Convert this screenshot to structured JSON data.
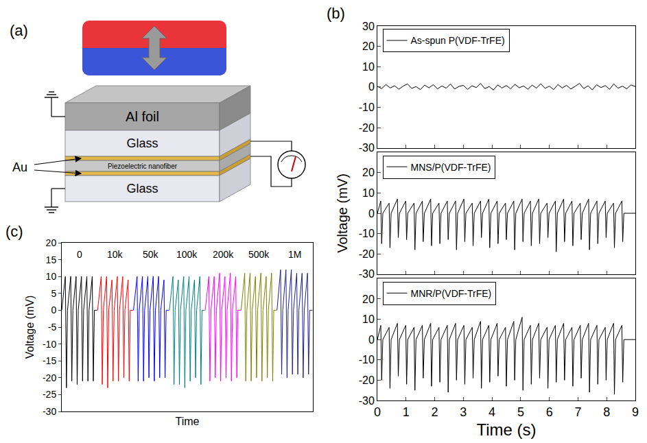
{
  "diagram": {
    "panel": "(a)",
    "layers": [
      "Al foil",
      "Glass",
      "Piezoelectric nanofiber",
      "Glass"
    ],
    "electrode": "Au"
  },
  "chart_data": [
    {
      "panel": "(b)",
      "type": "line",
      "xlim": [
        0,
        9
      ],
      "xticks": [
        0,
        1,
        2,
        3,
        4,
        5,
        6,
        7,
        8,
        9
      ],
      "ylim": [
        -30,
        30
      ],
      "yticks": [
        -30,
        -20,
        -10,
        0,
        10,
        20,
        30
      ],
      "legend": "upper left",
      "tick_labels": "y",
      "series": [
        {
          "name": "As-spun P(VDF-TrFE)",
          "color": "#000000",
          "x": [
            0,
            0.15,
            0.3,
            0.45,
            0.6,
            0.75,
            0.9,
            1.05,
            1.2,
            1.35,
            1.5,
            1.65,
            1.8,
            1.95,
            2.1,
            2.25,
            2.4,
            2.55,
            2.7,
            2.85,
            3,
            3.15,
            3.3,
            3.45,
            3.6,
            3.75,
            3.9,
            4.05,
            4.2,
            4.35,
            4.5,
            4.65,
            4.8,
            4.95,
            5.1,
            5.25,
            5.4,
            5.55,
            5.7,
            5.85,
            6,
            6.15,
            6.3,
            6.45,
            6.6,
            6.75,
            6.9,
            7.05,
            7.2,
            7.35,
            7.5,
            7.65,
            7.8,
            7.95,
            8.1,
            8.25,
            8.4,
            8.55,
            8.7,
            8.85,
            9
          ],
          "values": [
            0.3,
            -0.8,
            1.2,
            -0.5,
            0.6,
            -1.1,
            0.4,
            1.5,
            -0.7,
            0.2,
            -1.3,
            0.9,
            -0.4,
            1.1,
            -0.9,
            0.5,
            -0.6,
            1.4,
            -1.0,
            0.3,
            0.8,
            -1.2,
            0.6,
            -0.3,
            1.7,
            -0.8,
            0.2,
            -1.5,
            1.0,
            -0.5,
            0.7,
            -0.9,
            1.3,
            -0.4,
            0.5,
            -1.1,
            0.9,
            -0.6,
            1.6,
            -0.7,
            0.4,
            -1.3,
            1.2,
            -0.5,
            0.8,
            -1.0,
            0.3,
            1.8,
            -0.8,
            0.6,
            -1.4,
            1.1,
            -0.3,
            0.7,
            -1.2,
            1.5,
            -0.6,
            0.4,
            -0.9,
            1.0,
            0.2
          ]
        }
      ]
    },
    {
      "type": "line",
      "y_label": "Voltage (mV)",
      "xlim": [
        0,
        9
      ],
      "xticks": [
        0,
        1,
        2,
        3,
        4,
        5,
        6,
        7,
        8,
        9
      ],
      "ylim": [
        -30,
        30
      ],
      "yticks": [
        -30,
        -20,
        -10,
        0,
        10,
        20
      ],
      "legend": "upper left",
      "tick_labels": "y",
      "series": [
        {
          "name": "MNS/P(VDF-TrFE)",
          "color": "#000000",
          "x": [
            0,
            0.12,
            0.15,
            0.19,
            0.41,
            0.44,
            0.48,
            0.7,
            0.73,
            0.77,
            0.99,
            1.02,
            1.06,
            1.28,
            1.31,
            1.35,
            1.57,
            1.6,
            1.64,
            1.86,
            1.89,
            1.93,
            2.15,
            2.18,
            2.22,
            2.44,
            2.47,
            2.51,
            2.73,
            2.76,
            2.8,
            3.02,
            3.05,
            3.09,
            3.31,
            3.34,
            3.38,
            3.6,
            3.63,
            3.67,
            3.89,
            3.92,
            3.96,
            4.18,
            4.21,
            4.25,
            4.47,
            4.5,
            4.54,
            4.76,
            4.79,
            4.83,
            5.05,
            5.08,
            5.12,
            5.34,
            5.37,
            5.41,
            5.63,
            5.66,
            5.7,
            5.92,
            5.95,
            5.99,
            6.21,
            6.24,
            6.28,
            6.5,
            6.53,
            6.57,
            6.79,
            6.82,
            6.86,
            7.08,
            7.11,
            7.15,
            7.37,
            7.4,
            7.44,
            7.66,
            7.69,
            7.73,
            7.95,
            7.98,
            8.02,
            8.24,
            8.27,
            8.31,
            8.53,
            8.56,
            8.6,
            9
          ],
          "values": [
            0,
            6,
            -15,
            0,
            5,
            -17,
            0,
            7,
            -12,
            0,
            6,
            -13,
            0,
            5,
            -18,
            0,
            6,
            -14,
            0,
            7,
            -16,
            0,
            5,
            -15,
            0,
            6,
            -13,
            0,
            6,
            -18,
            0,
            7,
            -14,
            0,
            5,
            -16,
            0,
            6,
            -12,
            0,
            7,
            -17,
            0,
            6,
            -15,
            0,
            5,
            -13,
            0,
            6,
            -18,
            0,
            7,
            -14,
            0,
            6,
            -16,
            0,
            7,
            -15,
            0,
            5,
            -12,
            0,
            6,
            -19,
            0,
            7,
            -14,
            0,
            6,
            -16,
            0,
            5,
            -13,
            0,
            7,
            -18,
            0,
            6,
            -15,
            0,
            6,
            -12,
            0,
            5,
            -17,
            0,
            6,
            -14,
            0,
            0
          ]
        }
      ]
    },
    {
      "type": "line",
      "x_label": "Time (s)",
      "xlim": [
        0,
        9
      ],
      "xticks": [
        0,
        1,
        2,
        3,
        4,
        5,
        6,
        7,
        8,
        9
      ],
      "ylim": [
        -30,
        30
      ],
      "yticks": [
        -30,
        -20,
        -10,
        0,
        10,
        20
      ],
      "legend": "upper left",
      "series": [
        {
          "name": "MNR/P(VDF-TrFE)",
          "color": "#000000",
          "x": [
            0,
            0.12,
            0.15,
            0.19,
            0.41,
            0.44,
            0.48,
            0.7,
            0.73,
            0.77,
            0.99,
            1.02,
            1.06,
            1.28,
            1.31,
            1.35,
            1.57,
            1.6,
            1.64,
            1.86,
            1.89,
            1.93,
            2.15,
            2.18,
            2.22,
            2.44,
            2.47,
            2.51,
            2.73,
            2.76,
            2.8,
            3.02,
            3.05,
            3.09,
            3.31,
            3.34,
            3.38,
            3.6,
            3.63,
            3.67,
            3.89,
            3.92,
            3.96,
            4.18,
            4.21,
            4.25,
            4.47,
            4.5,
            4.54,
            4.76,
            4.79,
            4.83,
            5.05,
            5.08,
            5.12,
            5.34,
            5.37,
            5.41,
            5.63,
            5.66,
            5.7,
            5.92,
            5.95,
            5.99,
            6.21,
            6.24,
            6.28,
            6.5,
            6.53,
            6.57,
            6.79,
            6.82,
            6.86,
            7.08,
            7.11,
            7.15,
            7.37,
            7.4,
            7.44,
            7.66,
            7.69,
            7.73,
            7.95,
            7.98,
            8.02,
            8.24,
            8.27,
            8.31,
            8.53,
            8.56,
            8.6,
            9
          ],
          "values": [
            0,
            7,
            -20,
            0,
            6,
            -24,
            0,
            8,
            -18,
            0,
            7,
            -22,
            0,
            6,
            -25,
            0,
            7,
            -19,
            0,
            8,
            -23,
            0,
            6,
            -21,
            0,
            7,
            -26,
            0,
            8,
            -20,
            0,
            7,
            -22,
            0,
            6,
            -19,
            0,
            9,
            -24,
            0,
            7,
            -21,
            0,
            8,
            -18,
            0,
            6,
            -23,
            0,
            9,
            -20,
            0,
            11,
            -25,
            0,
            7,
            -22,
            0,
            8,
            -19,
            0,
            6,
            -24,
            0,
            7,
            -21,
            0,
            8,
            -20,
            0,
            6,
            -23,
            0,
            7,
            -19,
            0,
            8,
            -26,
            0,
            7,
            -22,
            0,
            6,
            -20,
            0,
            8,
            -27,
            0,
            7,
            -21,
            0,
            0
          ]
        }
      ]
    },
    {
      "panel": "(c)",
      "type": "line",
      "x_label": "Time",
      "y_label": "Voltage (mV)",
      "xlim": [
        0,
        70
      ],
      "xticks": [],
      "ylim": [
        -30,
        20
      ],
      "yticks": [
        -30,
        -25,
        -20,
        -15,
        -10,
        -5,
        0,
        5,
        10,
        15,
        20
      ],
      "tick_labels": "y",
      "series": [
        {
          "name": "0",
          "color": "#000000",
          "x": [
            0,
            1,
            1.3,
            1.6,
            2.5,
            2.8,
            3.1,
            4,
            4.3,
            4.6,
            5.5,
            5.8,
            6.1,
            7,
            7.3,
            7.6,
            8.5,
            8.8,
            9.1,
            9.9
          ],
          "values": [
            0,
            10,
            -23,
            0,
            10,
            -21,
            0,
            10,
            -22,
            0,
            10,
            -21,
            0,
            10,
            -21,
            0,
            10,
            -21,
            0,
            0
          ]
        },
        {
          "name": "10k",
          "color": "#ff0000",
          "x": [
            10,
            11,
            11.3,
            11.6,
            12.5,
            12.8,
            13.1,
            14,
            14.3,
            14.6,
            15.5,
            15.8,
            16.1,
            17,
            17.3,
            17.6,
            18.5,
            18.8,
            19.1,
            19.9
          ],
          "values": [
            0,
            10,
            -22,
            0,
            10,
            -23,
            0,
            9,
            -21,
            0,
            10,
            -21,
            0,
            10,
            -20,
            0,
            9,
            -21,
            0,
            0
          ]
        },
        {
          "name": "50k",
          "color": "#0000ff",
          "x": [
            20,
            21,
            21.3,
            21.6,
            22.5,
            22.8,
            23.1,
            24,
            24.3,
            24.6,
            25.5,
            25.8,
            26.1,
            27,
            27.3,
            27.6,
            28.5,
            28.8,
            29.1,
            29.9
          ],
          "values": [
            0,
            10,
            -21,
            0,
            10,
            -21,
            0,
            10,
            -20,
            0,
            10,
            -21,
            0,
            10,
            -20,
            0,
            9,
            -20,
            0,
            0
          ]
        },
        {
          "name": "100k",
          "color": "#008080",
          "x": [
            30,
            31,
            31.3,
            31.6,
            32.5,
            32.8,
            33.1,
            34,
            34.3,
            34.6,
            35.5,
            35.8,
            36.1,
            37,
            37.3,
            37.6,
            38.5,
            38.8,
            39.1,
            39.9
          ],
          "values": [
            0,
            10,
            -22,
            0,
            9,
            -22,
            0,
            10,
            -23,
            0,
            10,
            -21,
            0,
            9,
            -20,
            0,
            10,
            -22,
            0,
            0
          ]
        },
        {
          "name": "200k",
          "color": "#ff00ff",
          "x": [
            40,
            41,
            41.3,
            41.6,
            42.5,
            42.8,
            43.1,
            44,
            44.3,
            44.6,
            45.5,
            45.8,
            46.1,
            47,
            47.3,
            47.6,
            48.5,
            48.8,
            49.1,
            49.9
          ],
          "values": [
            0,
            10,
            -21,
            0,
            10,
            -20,
            0,
            11,
            -21,
            0,
            10,
            -20,
            0,
            11,
            -21,
            0,
            10,
            -20,
            0,
            0
          ]
        },
        {
          "name": "500k",
          "color": "#808000",
          "x": [
            50,
            51,
            51.3,
            51.6,
            52.5,
            52.8,
            53.1,
            54,
            54.3,
            54.6,
            55.5,
            55.8,
            56.1,
            57,
            57.3,
            57.6,
            58.5,
            58.8,
            59.1,
            59.9
          ],
          "values": [
            0,
            11,
            -21,
            0,
            11,
            -21,
            0,
            10,
            -20,
            0,
            11,
            -21,
            0,
            10,
            -20,
            0,
            11,
            -21,
            0,
            0
          ]
        },
        {
          "name": "1M",
          "color": "#1f1f99",
          "x": [
            60,
            61,
            61.3,
            61.6,
            62.5,
            62.8,
            63.1,
            64,
            64.3,
            64.6,
            65.5,
            65.8,
            66.1,
            67,
            67.3,
            67.6,
            68.5,
            68.8,
            69.1,
            69.9
          ],
          "values": [
            0,
            12,
            -19,
            0,
            12,
            -20,
            0,
            12,
            -19,
            0,
            11,
            -19,
            0,
            11,
            -20,
            0,
            11,
            -19,
            0,
            0
          ]
        }
      ]
    }
  ]
}
